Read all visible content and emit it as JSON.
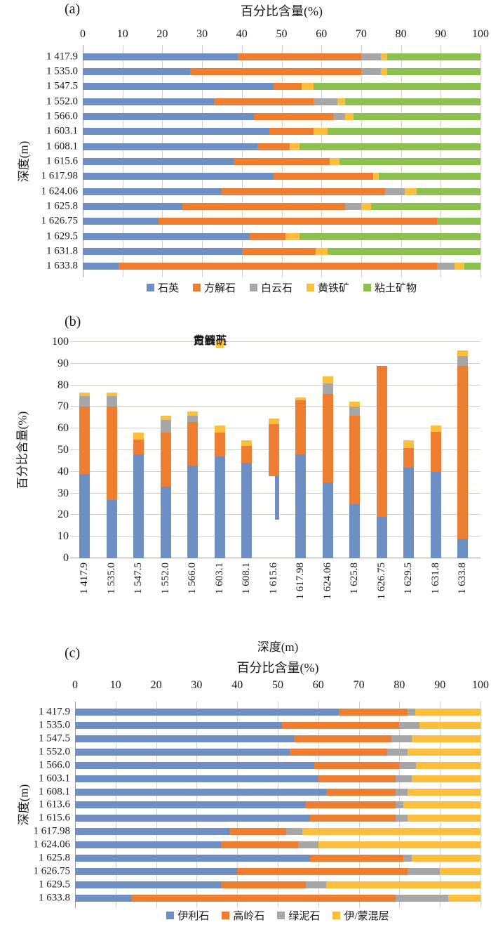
{
  "colors": {
    "quartz_blue": "#6E8FC4",
    "calcite_orange": "#ED7D31",
    "dolomite_gray": "#A6A6A6",
    "pyrite_yellow": "#FBBE3D",
    "clay_green": "#8CC152",
    "grid": "#D4CFC7",
    "axis": "#A29D95"
  },
  "chart_data": [
    {
      "id": "a",
      "type": "bar",
      "orientation": "horizontal-stacked",
      "panel_label": "(a)",
      "x_axis_title": "百分比含量(%)",
      "y_axis_title": "深度(m)",
      "x_ticks": [
        0,
        10,
        20,
        30,
        40,
        50,
        60,
        70,
        80,
        90,
        100
      ],
      "xlim": [
        0,
        100
      ],
      "grid": true,
      "legend_position": "bottom",
      "categories": [
        "1 417.9",
        "1 535.0",
        "1 547.5",
        "1 552.0",
        "1 566.0",
        "1 603.1",
        "1 608.1",
        "1 615.6",
        "1 617.98",
        "1 624.06",
        "1 625.8",
        "1 626.75",
        "1 629.5",
        "1 631.8",
        "1 633.8"
      ],
      "series": [
        {
          "name": "石英",
          "key": "quartz",
          "color": "#6E8FC4",
          "values": [
            39,
            27,
            48,
            33,
            43,
            47,
            44,
            38,
            48,
            35,
            25,
            19,
            42,
            40,
            9
          ]
        },
        {
          "name": "方解石",
          "key": "calcite",
          "color": "#ED7D31",
          "values": [
            31,
            43,
            7,
            25,
            20,
            11,
            8,
            24,
            25,
            41,
            41,
            70,
            9,
            18.5,
            80
          ]
        },
        {
          "name": "白云石",
          "key": "dolomite",
          "color": "#A6A6A6",
          "values": [
            5,
            5,
            0,
            6,
            3,
            0,
            0,
            0,
            0,
            5,
            4,
            0,
            0,
            0,
            4.5
          ]
        },
        {
          "name": "黄铁矿",
          "key": "pyrite",
          "color": "#FBBE3D",
          "values": [
            1.5,
            1.5,
            3,
            2,
            2,
            3.5,
            2.5,
            2.5,
            1.5,
            3,
            2.5,
            0,
            3.5,
            3,
            2.5
          ]
        },
        {
          "name": "粘土矿物",
          "key": "clay-minerals",
          "color": "#8CC152",
          "values": [
            23.5,
            23.5,
            42,
            34,
            32,
            38.5,
            45.5,
            35.5,
            25.5,
            16,
            27.5,
            11,
            45.5,
            38.5,
            4
          ]
        }
      ]
    },
    {
      "id": "b",
      "type": "bar",
      "orientation": "vertical-stacked",
      "panel_label": "(b)",
      "x_axis_title": "深度(m)",
      "y_axis_title": "百分比含量(%)",
      "y_ticks": [
        0,
        10,
        20,
        30,
        40,
        50,
        60,
        70,
        80,
        90,
        100
      ],
      "ylim": [
        0,
        100
      ],
      "grid": true,
      "legend_position": "top-inside",
      "categories": [
        "1 417.9",
        "1 535.0",
        "1 547.5",
        "1 552.0",
        "1 566.0",
        "1 603.1",
        "1 608.1",
        "1 615.6",
        "1 617.98",
        "1 624.06",
        "1 625.8",
        "1 626.75",
        "1 629.5",
        "1 631.8",
        "1 633.8"
      ],
      "series": [
        {
          "name": "石英",
          "key": "quartz",
          "color": "#6E8FC4",
          "values": [
            39,
            27,
            48,
            33,
            43,
            47,
            44,
            20,
            48,
            35,
            25,
            19,
            42,
            40,
            9
          ]
        },
        {
          "name": "方解石",
          "key": "calcite",
          "color": "#ED7D31",
          "values": [
            31,
            43,
            7,
            25,
            20,
            11,
            8,
            24,
            25,
            41,
            41,
            70,
            9,
            18.5,
            80
          ]
        },
        {
          "name": "白云石",
          "key": "dolomite",
          "color": "#A6A6A6",
          "values": [
            5,
            5,
            0,
            6,
            3,
            0,
            0,
            0,
            0,
            5,
            4,
            0,
            0,
            0,
            4.5
          ]
        },
        {
          "name": "黄铁矿",
          "key": "pyrite",
          "color": "#FBBE3D",
          "values": [
            1.5,
            1.5,
            3,
            2,
            2,
            3.5,
            2.5,
            2.5,
            1.5,
            3,
            2.5,
            0,
            3.5,
            3,
            2.5
          ]
        }
      ],
      "special_bar": {
        "category": "1 615.6",
        "category_index": 7,
        "series_key": "quartz",
        "base": 18,
        "narrow": true
      }
    },
    {
      "id": "c",
      "type": "bar",
      "orientation": "horizontal-stacked",
      "panel_label": "(c)",
      "x_axis_title": "百分比含量(%)",
      "y_axis_title": "深度(m)",
      "x_ticks": [
        0,
        10,
        20,
        30,
        40,
        50,
        60,
        70,
        80,
        90,
        100
      ],
      "xlim": [
        0,
        100
      ],
      "grid": true,
      "legend_position": "bottom",
      "categories": [
        "1 417.9",
        "1 535.0",
        "1 547.5",
        "1 552.0",
        "1 566.0",
        "1 603.1",
        "1 608.1",
        "1 613.6",
        "1 615.6",
        "1 617.98",
        "1 624.06",
        "1 625.8",
        "1 626.75",
        "1 629.5",
        "1 633.8"
      ],
      "series": [
        {
          "name": "伊利石",
          "key": "illite",
          "color": "#6E8FC4",
          "values": [
            65,
            51,
            54,
            53,
            59,
            60,
            62,
            57,
            58,
            38,
            36,
            58,
            40,
            36,
            14
          ]
        },
        {
          "name": "高岭石",
          "key": "kaolinite",
          "color": "#ED7D31",
          "values": [
            17,
            29,
            24,
            24,
            21,
            19,
            17,
            22,
            21,
            14,
            19,
            23,
            42,
            21,
            65
          ]
        },
        {
          "name": "绿泥石",
          "key": "chlorite",
          "color": "#A6A6A6",
          "values": [
            2,
            5,
            5,
            5,
            4,
            4,
            3,
            2,
            3,
            4,
            5,
            2,
            8,
            5,
            13
          ]
        },
        {
          "name": "伊/蒙混层",
          "key": "illite-smectite-mixed-layer",
          "color": "#FBBE3D",
          "values": [
            16,
            15,
            17,
            18,
            16,
            17,
            18,
            19,
            18,
            44,
            40,
            17,
            10,
            38,
            8
          ]
        }
      ]
    }
  ]
}
